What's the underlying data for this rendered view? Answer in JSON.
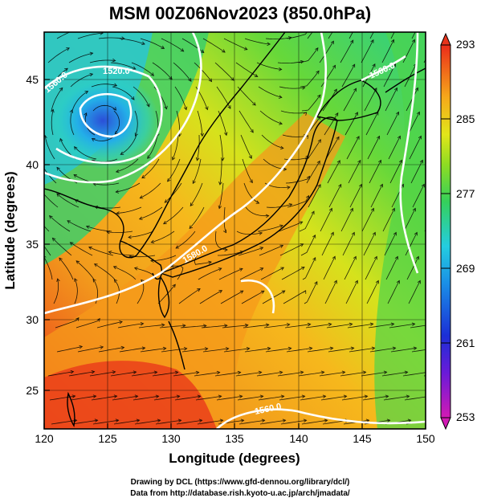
{
  "title": "MSM 00Z06Nov2023 (850.0hPa)",
  "xlabel": "Longitude (degrees)",
  "ylabel": "Latitude  (degrees)",
  "x_ticks": [
    "120",
    "125",
    "130",
    "135",
    "140",
    "145",
    "150"
  ],
  "y_ticks": [
    "25",
    "30",
    "35",
    "40",
    "45"
  ],
  "colorbar_ticks": [
    "293",
    "285",
    "277",
    "269",
    "261",
    "253"
  ],
  "contour_labels": [
    "1560.0",
    "1520.0",
    "1580.0",
    "1540.0"
  ],
  "credit_line1": "Drawing by DCL (https://www.gfd-dennou.org/library/dcl/)",
  "credit_line2": "Data from http://database.rish.kyoto-u.ac.jp/arch/jmadata/",
  "map": {
    "lon_range": [
      120,
      150
    ],
    "lat_range": [
      22.5,
      47.5
    ],
    "variable": "temperature (K) shaded, geopotential height contours, wind streamlines",
    "color_range": [
      253,
      293
    ]
  },
  "colors": {
    "hot": "#e8361c",
    "warm": "#f6a21b",
    "mild": "#dce51b",
    "cool": "#3fd04a",
    "cold": "#23b9e6",
    "coldest": "#1b3bd6"
  }
}
